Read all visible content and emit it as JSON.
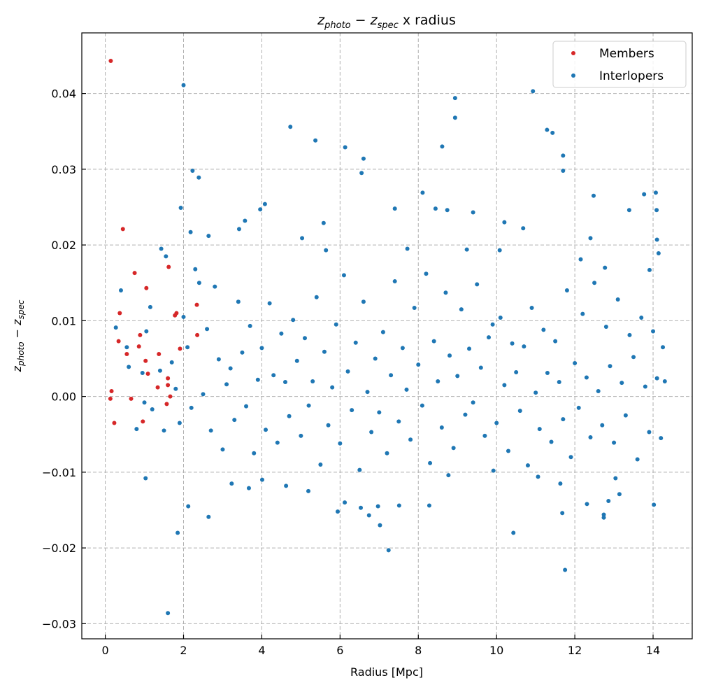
{
  "chart_data": {
    "type": "scatter",
    "title": {
      "var1": "z",
      "sub1": "photo",
      "op": " − ",
      "var2": "z",
      "sub2": "spec",
      "rest": " x radius"
    },
    "xlabel": "Radius [Mpc]",
    "ylabel": {
      "var1": "z",
      "sub1": "photo",
      "op": " − ",
      "var2": "z",
      "sub2": "spec"
    },
    "xlim": [
      -0.6,
      15.0
    ],
    "ylim": [
      -0.032,
      0.048
    ],
    "xticks": [
      0,
      2,
      4,
      6,
      8,
      10,
      12,
      14
    ],
    "xtick_labels": [
      "0",
      "2",
      "4",
      "6",
      "8",
      "10",
      "12",
      "14"
    ],
    "yticks": [
      -0.03,
      -0.02,
      -0.01,
      0.0,
      0.01,
      0.02,
      0.03,
      0.04
    ],
    "ytick_labels": [
      "−0.03",
      "−0.02",
      "−0.01",
      "0.00",
      "0.01",
      "0.02",
      "0.03",
      "0.04"
    ],
    "grid": true,
    "legend_position": "top-right",
    "series": [
      {
        "name": "Members",
        "color": "#d62728",
        "points": [
          [
            0.14,
            0.0443
          ],
          [
            0.45,
            0.0221
          ],
          [
            0.75,
            0.0163
          ],
          [
            1.05,
            0.0143
          ],
          [
            1.62,
            0.0171
          ],
          [
            0.37,
            0.011
          ],
          [
            2.34,
            0.0121
          ],
          [
            1.78,
            0.0107
          ],
          [
            1.82,
            0.011
          ],
          [
            0.89,
            0.0081
          ],
          [
            0.34,
            0.0073
          ],
          [
            2.35,
            0.0081
          ],
          [
            0.55,
            0.0056
          ],
          [
            0.86,
            0.0066
          ],
          [
            1.03,
            0.0047
          ],
          [
            1.37,
            0.0056
          ],
          [
            1.91,
            0.0063
          ],
          [
            1.09,
            0.003
          ],
          [
            1.34,
            0.0012
          ],
          [
            1.6,
            0.0024
          ],
          [
            1.6,
            0.0015
          ],
          [
            0.16,
            0.0007
          ],
          [
            0.13,
            -0.0003
          ],
          [
            0.66,
            -0.0003
          ],
          [
            1.66,
            0.0
          ],
          [
            1.57,
            -0.001
          ],
          [
            0.23,
            -0.0035
          ],
          [
            0.96,
            -0.0033
          ]
        ]
      },
      {
        "name": "Interlopers",
        "color": "#1f77b4",
        "points": [
          [
            2.0,
            0.0411
          ],
          [
            2.23,
            0.0298
          ],
          [
            2.39,
            0.0289
          ],
          [
            1.93,
            0.0249
          ],
          [
            2.18,
            0.0217
          ],
          [
            2.64,
            0.0212
          ],
          [
            1.43,
            0.0195
          ],
          [
            1.55,
            0.0185
          ],
          [
            4.73,
            0.0356
          ],
          [
            5.37,
            0.0338
          ],
          [
            6.13,
            0.0329
          ],
          [
            6.6,
            0.0314
          ],
          [
            3.96,
            0.0247
          ],
          [
            4.08,
            0.0254
          ],
          [
            3.57,
            0.0232
          ],
          [
            3.42,
            0.0221
          ],
          [
            5.58,
            0.0229
          ],
          [
            5.03,
            0.0209
          ],
          [
            5.64,
            0.0193
          ],
          [
            6.55,
            0.0295
          ],
          [
            7.4,
            0.0248
          ],
          [
            7.72,
            0.0195
          ],
          [
            8.11,
            0.0269
          ],
          [
            8.44,
            0.0248
          ],
          [
            8.74,
            0.0246
          ],
          [
            8.94,
            0.0394
          ],
          [
            8.94,
            0.0368
          ],
          [
            8.61,
            0.033
          ],
          [
            9.4,
            0.0243
          ],
          [
            9.24,
            0.0194
          ],
          [
            10.08,
            0.0193
          ],
          [
            10.2,
            0.023
          ],
          [
            10.68,
            0.0222
          ],
          [
            10.93,
            0.0403
          ],
          [
            11.29,
            0.0352
          ],
          [
            11.43,
            0.0348
          ],
          [
            11.7,
            0.0318
          ],
          [
            11.7,
            0.0298
          ],
          [
            12.15,
            0.0181
          ],
          [
            12.4,
            0.0209
          ],
          [
            12.48,
            0.0265
          ],
          [
            12.77,
            0.017
          ],
          [
            13.39,
            0.0246
          ],
          [
            13.77,
            0.0267
          ],
          [
            14.07,
            0.0269
          ],
          [
            14.09,
            0.0246
          ],
          [
            14.1,
            0.0207
          ],
          [
            14.14,
            0.0189
          ],
          [
            13.91,
            0.0167
          ],
          [
            1.6,
            -0.0286
          ],
          [
            1.85,
            -0.018
          ],
          [
            2.12,
            -0.0145
          ],
          [
            2.64,
            -0.0159
          ],
          [
            1.03,
            -0.0108
          ],
          [
            3.23,
            -0.0115
          ],
          [
            3.67,
            -0.0121
          ],
          [
            4.01,
            -0.011
          ],
          [
            4.62,
            -0.0118
          ],
          [
            5.19,
            -0.0125
          ],
          [
            5.94,
            -0.0152
          ],
          [
            6.12,
            -0.014
          ],
          [
            6.53,
            -0.0147
          ],
          [
            6.74,
            -0.0157
          ],
          [
            6.97,
            -0.0145
          ],
          [
            7.02,
            -0.017
          ],
          [
            7.24,
            -0.0203
          ],
          [
            7.51,
            -0.0144
          ],
          [
            8.28,
            -0.0144
          ],
          [
            8.77,
            -0.0104
          ],
          [
            9.92,
            -0.0098
          ],
          [
            10.43,
            -0.018
          ],
          [
            11.06,
            -0.0106
          ],
          [
            11.63,
            -0.0115
          ],
          [
            11.75,
            -0.0229
          ],
          [
            11.68,
            -0.0154
          ],
          [
            12.31,
            -0.0142
          ],
          [
            12.74,
            -0.0156
          ],
          [
            12.74,
            -0.016
          ],
          [
            12.86,
            -0.0138
          ],
          [
            13.14,
            -0.0129
          ],
          [
            14.02,
            -0.0143
          ],
          [
            13.04,
            -0.0108
          ],
          [
            0.27,
            0.0091
          ],
          [
            0.4,
            0.014
          ],
          [
            0.55,
            0.0065
          ],
          [
            0.6,
            0.0039
          ],
          [
            0.8,
            -0.0043
          ],
          [
            0.95,
            0.0031
          ],
          [
            1.0,
            -0.0008
          ],
          [
            1.05,
            0.0086
          ],
          [
            1.15,
            0.0118
          ],
          [
            1.2,
            -0.0017
          ],
          [
            1.4,
            0.0034
          ],
          [
            1.5,
            -0.0045
          ],
          [
            1.7,
            0.0045
          ],
          [
            1.8,
            0.001
          ],
          [
            1.9,
            -0.0035
          ],
          [
            2.0,
            0.0105
          ],
          [
            2.1,
            0.0065
          ],
          [
            2.2,
            -0.0015
          ],
          [
            2.3,
            0.0168
          ],
          [
            2.4,
            0.015
          ],
          [
            2.5,
            0.0003
          ],
          [
            2.6,
            0.0089
          ],
          [
            2.7,
            -0.0045
          ],
          [
            2.8,
            0.0145
          ],
          [
            2.9,
            0.0049
          ],
          [
            3.0,
            -0.007
          ],
          [
            3.1,
            0.0016
          ],
          [
            3.2,
            0.0037
          ],
          [
            3.3,
            -0.0031
          ],
          [
            3.4,
            0.0125
          ],
          [
            3.5,
            0.0058
          ],
          [
            3.6,
            -0.0013
          ],
          [
            3.7,
            0.0093
          ],
          [
            3.8,
            -0.0075
          ],
          [
            3.9,
            0.0022
          ],
          [
            4.0,
            0.0064
          ],
          [
            4.1,
            -0.0044
          ],
          [
            4.2,
            0.0123
          ],
          [
            4.3,
            0.0028
          ],
          [
            4.4,
            -0.0061
          ],
          [
            4.5,
            0.0083
          ],
          [
            4.6,
            0.0019
          ],
          [
            4.7,
            -0.0026
          ],
          [
            4.8,
            0.0101
          ],
          [
            4.9,
            0.0047
          ],
          [
            5.0,
            -0.0052
          ],
          [
            5.1,
            0.0077
          ],
          [
            5.2,
            -0.0012
          ],
          [
            5.3,
            0.002
          ],
          [
            5.4,
            0.0131
          ],
          [
            5.5,
            -0.009
          ],
          [
            5.6,
            0.0059
          ],
          [
            5.7,
            -0.0038
          ],
          [
            5.8,
            0.0012
          ],
          [
            5.9,
            0.0095
          ],
          [
            6.0,
            -0.0062
          ],
          [
            6.1,
            0.016
          ],
          [
            6.2,
            0.0033
          ],
          [
            6.3,
            -0.0018
          ],
          [
            6.4,
            0.0071
          ],
          [
            6.5,
            -0.0097
          ],
          [
            6.6,
            0.0125
          ],
          [
            6.7,
            0.0006
          ],
          [
            6.8,
            -0.0047
          ],
          [
            6.9,
            0.005
          ],
          [
            7.0,
            -0.0021
          ],
          [
            7.1,
            0.0085
          ],
          [
            7.2,
            -0.0075
          ],
          [
            7.3,
            0.0028
          ],
          [
            7.4,
            0.0152
          ],
          [
            7.5,
            -0.0033
          ],
          [
            7.6,
            0.0064
          ],
          [
            7.7,
            0.0009
          ],
          [
            7.8,
            -0.0057
          ],
          [
            7.9,
            0.0117
          ],
          [
            8.0,
            0.0042
          ],
          [
            8.1,
            -0.0012
          ],
          [
            8.2,
            0.0162
          ],
          [
            8.3,
            -0.0088
          ],
          [
            8.4,
            0.0073
          ],
          [
            8.5,
            0.002
          ],
          [
            8.6,
            -0.0041
          ],
          [
            8.7,
            0.0137
          ],
          [
            8.8,
            0.0054
          ],
          [
            8.9,
            -0.0068
          ],
          [
            9.0,
            0.0027
          ],
          [
            9.1,
            0.0115
          ],
          [
            9.2,
            -0.0024
          ],
          [
            9.3,
            0.0063
          ],
          [
            9.4,
            -0.0008
          ],
          [
            9.5,
            0.0148
          ],
          [
            9.6,
            0.0038
          ],
          [
            9.7,
            -0.0052
          ],
          [
            9.8,
            0.0078
          ],
          [
            9.9,
            0.0095
          ],
          [
            10.0,
            -0.0035
          ],
          [
            10.1,
            0.0104
          ],
          [
            10.2,
            0.0015
          ],
          [
            10.3,
            -0.0072
          ],
          [
            10.4,
            0.007
          ],
          [
            10.5,
            0.0032
          ],
          [
            10.6,
            -0.0019
          ],
          [
            10.7,
            0.0066
          ],
          [
            10.8,
            -0.0091
          ],
          [
            10.9,
            0.0117
          ],
          [
            11.0,
            0.0005
          ],
          [
            11.1,
            -0.0043
          ],
          [
            11.2,
            0.0088
          ],
          [
            11.3,
            0.0031
          ],
          [
            11.4,
            -0.006
          ],
          [
            11.5,
            0.0073
          ],
          [
            11.6,
            0.0019
          ],
          [
            11.7,
            -0.003
          ],
          [
            11.8,
            0.014
          ],
          [
            11.9,
            -0.008
          ],
          [
            12.0,
            0.0044
          ],
          [
            12.1,
            -0.0015
          ],
          [
            12.2,
            0.0109
          ],
          [
            12.3,
            0.0025
          ],
          [
            12.4,
            -0.0054
          ],
          [
            12.5,
            0.015
          ],
          [
            12.6,
            0.0007
          ],
          [
            12.7,
            -0.0038
          ],
          [
            12.8,
            0.0092
          ],
          [
            12.9,
            0.004
          ],
          [
            13.0,
            -0.0061
          ],
          [
            13.1,
            0.0128
          ],
          [
            13.2,
            0.0018
          ],
          [
            13.3,
            -0.0025
          ],
          [
            13.4,
            0.0081
          ],
          [
            13.5,
            0.0052
          ],
          [
            13.6,
            -0.0083
          ],
          [
            13.7,
            0.0104
          ],
          [
            13.8,
            0.0013
          ],
          [
            13.9,
            -0.0047
          ],
          [
            14.0,
            0.0086
          ],
          [
            14.1,
            0.0024
          ],
          [
            14.2,
            -0.0055
          ],
          [
            14.25,
            0.0065
          ],
          [
            14.3,
            0.002
          ]
        ]
      }
    ]
  }
}
